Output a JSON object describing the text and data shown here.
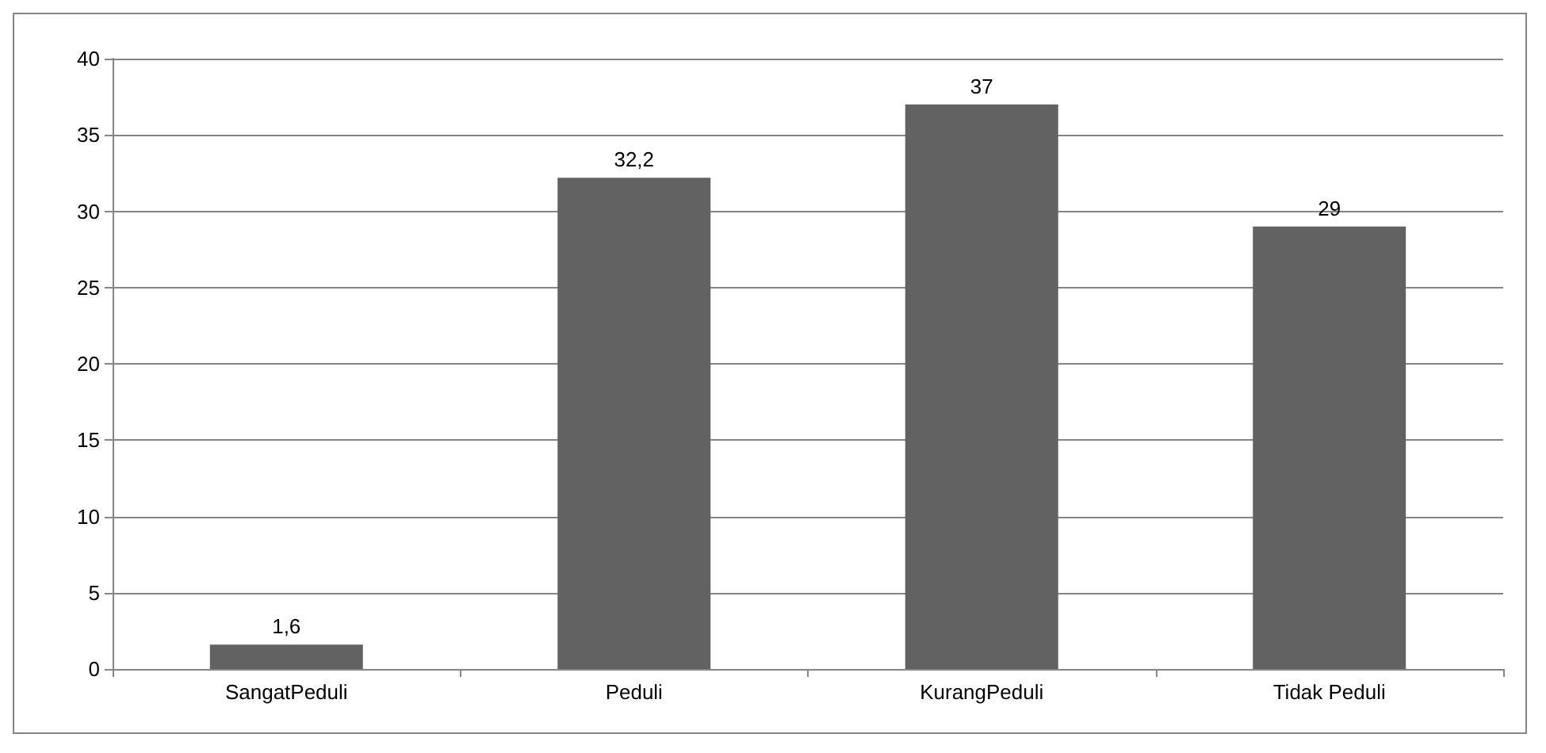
{
  "chart_data": {
    "type": "bar",
    "categories": [
      "SangatPeduli",
      "Peduli",
      "KurangPeduli",
      "Tidak Peduli"
    ],
    "values": [
      1.6,
      32.2,
      37,
      29
    ],
    "value_labels": [
      "1,6",
      "32,2",
      "37",
      "29"
    ],
    "color": "#626262",
    "ylim": [
      0,
      40
    ],
    "yticks": [
      0,
      5,
      10,
      15,
      20,
      25,
      30,
      35,
      40
    ],
    "grid": "y"
  }
}
